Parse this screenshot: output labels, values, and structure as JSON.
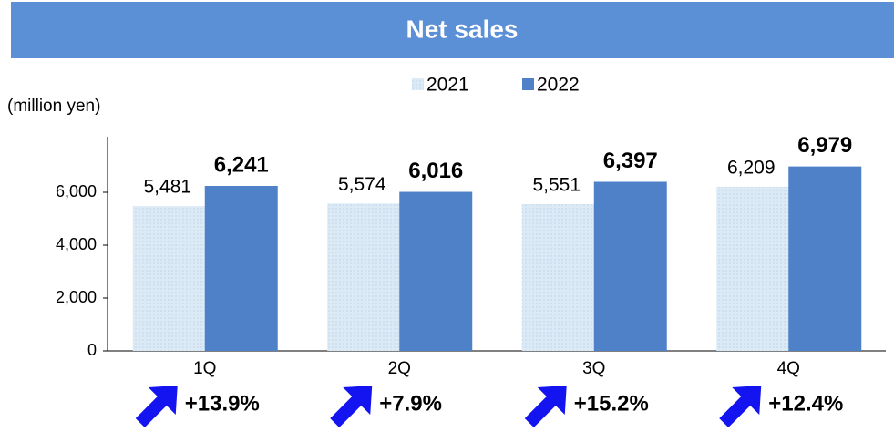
{
  "chart_data": {
    "type": "bar",
    "title": "Net sales",
    "y_label": "(million yen)",
    "categories": [
      "1Q",
      "2Q",
      "3Q",
      "4Q"
    ],
    "series": [
      {
        "name": "2021",
        "color": "#d6e6f4",
        "values": [
          5481,
          5574,
          5551,
          6209
        ],
        "value_labels": [
          "5,481",
          "5,574",
          "5,551",
          "6,209"
        ]
      },
      {
        "name": "2022",
        "color": "#4f81c9",
        "values": [
          6241,
          6016,
          6397,
          6979
        ],
        "value_labels": [
          "6,241",
          "6,016",
          "6,397",
          "6,979"
        ]
      }
    ],
    "annotations": [
      "+13.9%",
      "+7.9%",
      "+15.2%",
      "+12.4%"
    ],
    "ylim": [
      0,
      8000
    ],
    "yticks": [
      0,
      {
        "value": 2000,
        "label": "2,000"
      },
      {
        "value": 4000,
        "label": "4,000"
      },
      {
        "value": 6000,
        "label": "6,000"
      }
    ],
    "grid": false
  }
}
